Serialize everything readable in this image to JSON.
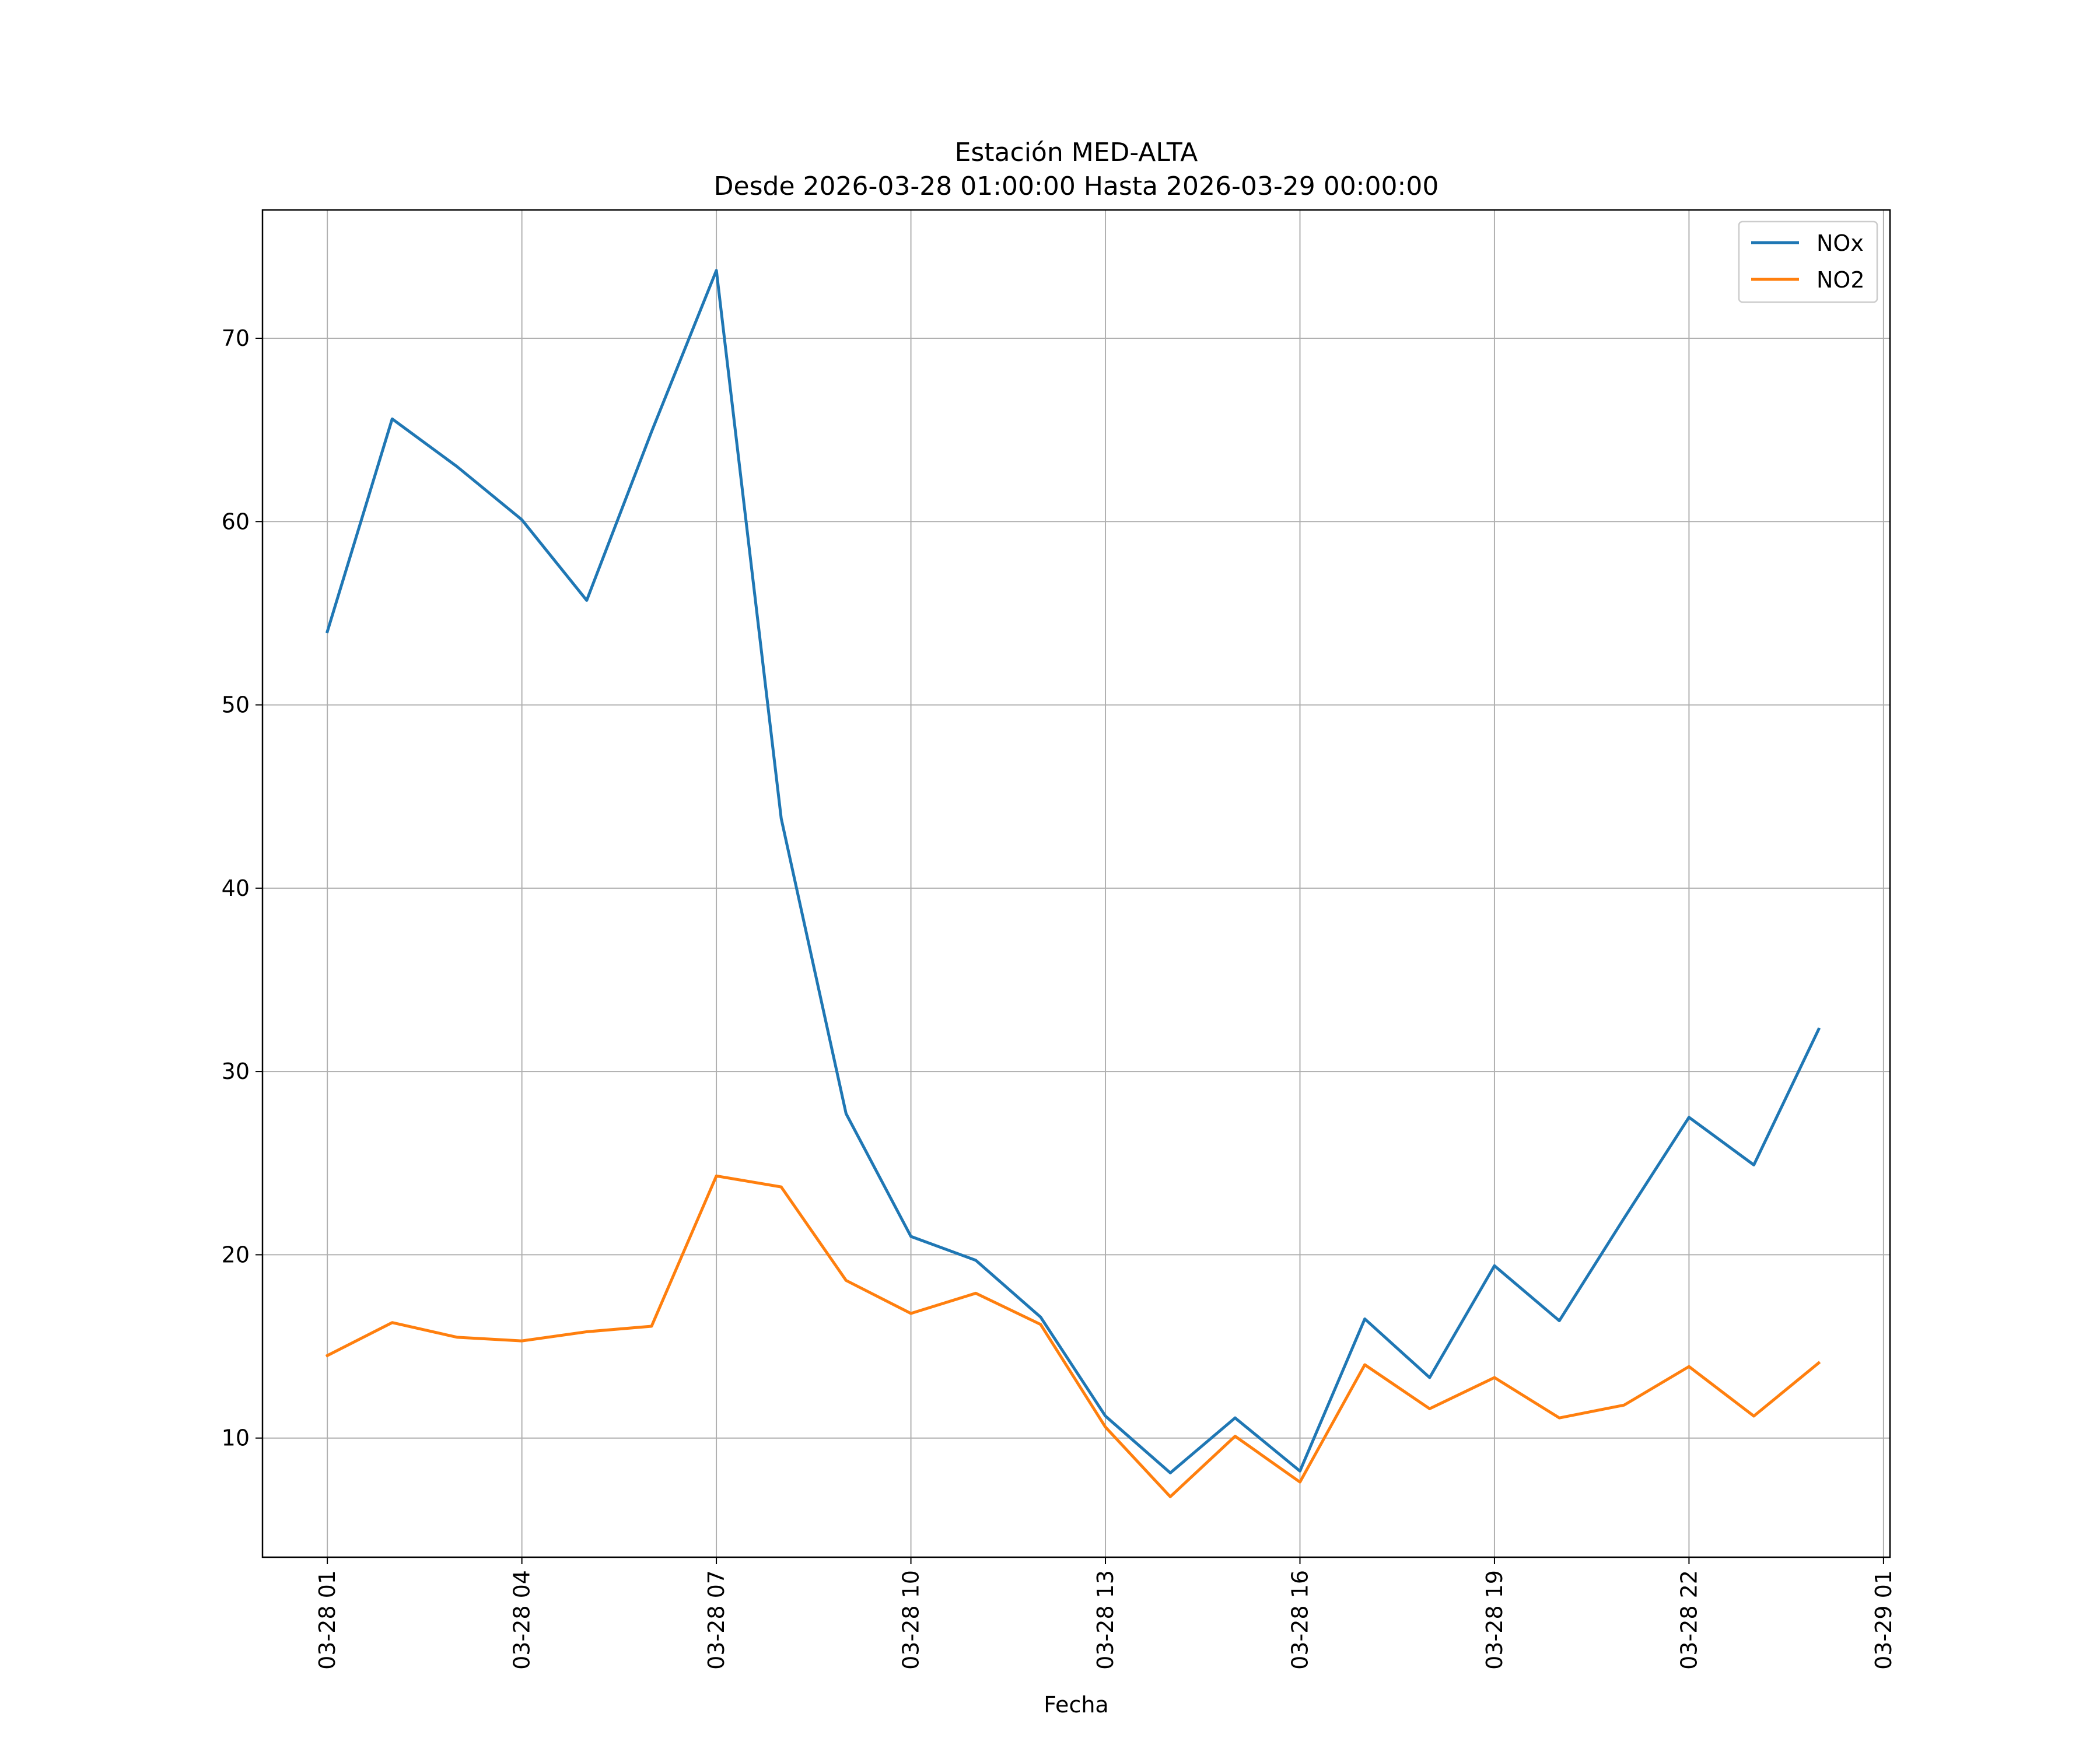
{
  "chart_data": {
    "type": "line",
    "title": "Estación MED-ALTA",
    "subtitle": "Desde 2026-03-28 01:00:00 Hasta 2026-03-29 00:00:00",
    "xlabel": "Fecha",
    "ylabel": "",
    "x": [
      "2026-03-28 01:00",
      "2026-03-28 02:00",
      "2026-03-28 03:00",
      "2026-03-28 04:00",
      "2026-03-28 05:00",
      "2026-03-28 06:00",
      "2026-03-28 07:00",
      "2026-03-28 08:00",
      "2026-03-28 09:00",
      "2026-03-28 10:00",
      "2026-03-28 11:00",
      "2026-03-28 12:00",
      "2026-03-28 13:00",
      "2026-03-28 14:00",
      "2026-03-28 15:00",
      "2026-03-28 16:00",
      "2026-03-28 17:00",
      "2026-03-28 18:00",
      "2026-03-28 19:00",
      "2026-03-28 20:00",
      "2026-03-28 21:00",
      "2026-03-28 22:00",
      "2026-03-28 23:00",
      "2026-03-29 00:00"
    ],
    "xlim": [
      "2026-03-28 00:00",
      "2026-03-29 01:06"
    ],
    "xticks": [
      {
        "at": "2026-03-28 01:00",
        "label": "03-28 01"
      },
      {
        "at": "2026-03-28 04:00",
        "label": "03-28 04"
      },
      {
        "at": "2026-03-28 07:00",
        "label": "03-28 07"
      },
      {
        "at": "2026-03-28 10:00",
        "label": "03-28 10"
      },
      {
        "at": "2026-03-28 13:00",
        "label": "03-28 13"
      },
      {
        "at": "2026-03-28 16:00",
        "label": "03-28 16"
      },
      {
        "at": "2026-03-28 19:00",
        "label": "03-28 19"
      },
      {
        "at": "2026-03-28 22:00",
        "label": "03-28 22"
      },
      {
        "at": "2026-03-29 01:00",
        "label": "03-29 01"
      }
    ],
    "ylim": [
      3.5,
      77
    ],
    "yticks": [
      10,
      20,
      30,
      40,
      50,
      60,
      70
    ],
    "grid": true,
    "legend": "top-right",
    "series": [
      {
        "name": "NOx",
        "color": "#1f77b4",
        "values": [
          54.0,
          65.6,
          63.0,
          60.1,
          55.7,
          64.9,
          73.7,
          43.8,
          27.7,
          21.0,
          19.7,
          16.6,
          11.2,
          8.1,
          11.1,
          8.2,
          16.5,
          13.3,
          19.4,
          16.4,
          22.0,
          27.5,
          24.9,
          32.3
        ]
      },
      {
        "name": "NO2",
        "color": "#ff7f0e",
        "values": [
          14.5,
          16.3,
          15.5,
          15.3,
          15.8,
          16.1,
          24.3,
          23.7,
          18.6,
          16.8,
          17.9,
          16.2,
          10.6,
          6.8,
          10.1,
          7.6,
          14.0,
          11.6,
          13.3,
          11.1,
          11.8,
          13.9,
          11.2,
          14.1
        ]
      }
    ]
  }
}
